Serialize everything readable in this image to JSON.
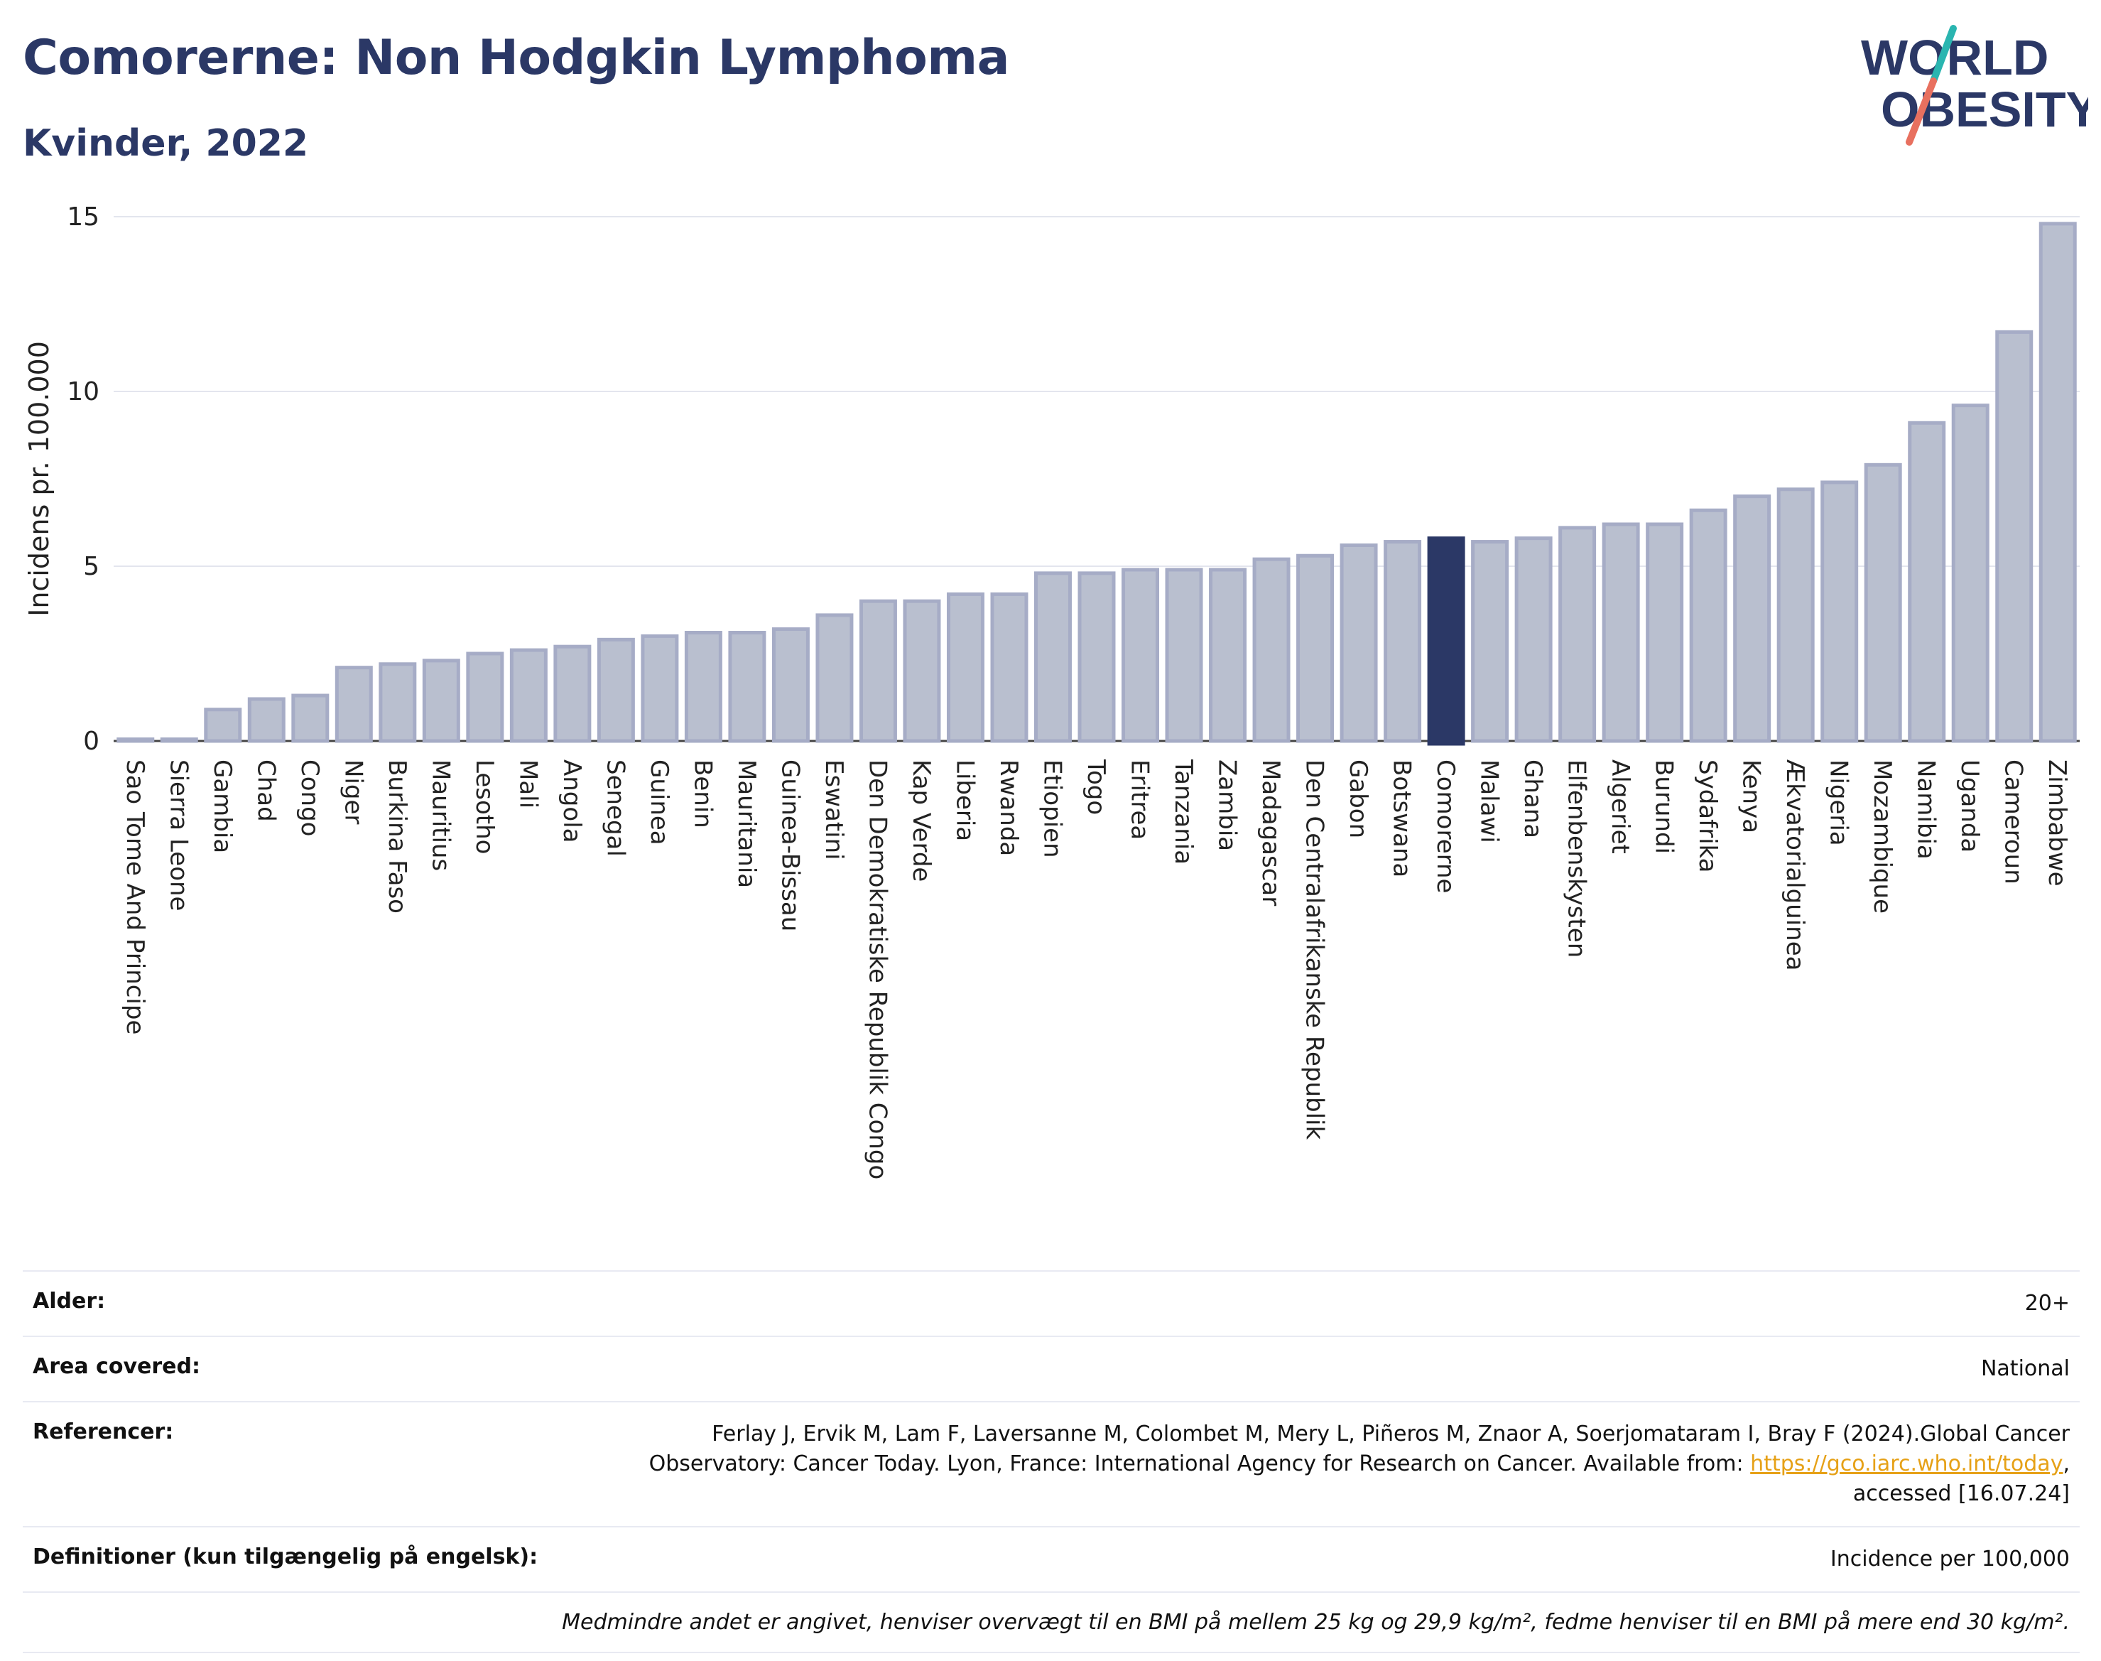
{
  "header": {
    "title": "Comorerne: Non Hodgkin Lymphoma",
    "subtitle": "Kvinder, 2022",
    "logo_line1": "WORLD",
    "logo_line2": "OBESITY"
  },
  "colors": {
    "title": "#2b3866",
    "bar": "#b9bfcf",
    "bar_outline": "#a6acc6",
    "highlight": "#2b3866",
    "logo_teal": "#2ab5b0",
    "logo_coral": "#e8705f",
    "link": "#e6a117"
  },
  "chart_data": {
    "type": "bar",
    "title": "Comorerne: Non Hodgkin Lymphoma",
    "subtitle": "Kvinder, 2022",
    "ylabel": "Incidens pr. 100.000",
    "xlabel": "",
    "ylim": [
      0,
      15
    ],
    "yticks": [
      0,
      5,
      10,
      15
    ],
    "grid": true,
    "highlight": "Comorerne",
    "categories": [
      "Sao Tome And Principe",
      "Sierra Leone",
      "Gambia",
      "Chad",
      "Congo",
      "Niger",
      "Burkina Faso",
      "Mauritius",
      "Lesotho",
      "Mali",
      "Angola",
      "Senegal",
      "Guinea",
      "Benin",
      "Mauritania",
      "Guinea-Bissau",
      "Eswatini",
      "Den Demokratiske Republik Congo",
      "Kap Verde",
      "Liberia",
      "Rwanda",
      "Etiopien",
      "Togo",
      "Eritrea",
      "Tanzania",
      "Zambia",
      "Madagascar",
      "Den Centralafrikanske Republik",
      "Gabon",
      "Botswana",
      "Comorerne",
      "Malawi",
      "Ghana",
      "Elfenbenskysten",
      "Algeriet",
      "Burundi",
      "Sydafrika",
      "Kenya",
      "Ækvatorialguinea",
      "Nigeria",
      "Mozambique",
      "Namibia",
      "Uganda",
      "Cameroun",
      "Zimbabwe"
    ],
    "values": [
      0.05,
      0.05,
      0.9,
      1.2,
      1.3,
      2.1,
      2.2,
      2.3,
      2.5,
      2.6,
      2.7,
      2.9,
      3.0,
      3.1,
      3.1,
      3.2,
      3.6,
      4.0,
      4.0,
      4.2,
      4.2,
      4.8,
      4.8,
      4.9,
      4.9,
      4.9,
      5.2,
      5.3,
      5.6,
      5.7,
      5.8,
      5.7,
      5.8,
      6.1,
      6.2,
      6.2,
      6.6,
      7.0,
      7.2,
      7.4,
      7.9,
      9.1,
      9.6,
      11.7,
      14.8
    ]
  },
  "info": {
    "age_label": "Alder:",
    "age_value": "20+",
    "area_label": "Area covered:",
    "area_value": "National",
    "ref_label": "Referencer:",
    "ref_text": "Ferlay J, Ervik M, Lam F, Laversanne M, Colombet M, Mery L, Piñeros M, Znaor A, Soerjomataram I, Bray F (2024).Global Cancer Observatory: Cancer Today. Lyon, France: International Agency for Research on Cancer. Available from: ",
    "ref_link": "https://gco.iarc.who.int/today",
    "ref_suffix": ", accessed [16.07.24]",
    "def_label": "Definitioner (kun tilgængelig på engelsk):",
    "def_value": "Incidence per 100,000",
    "note": "Medmindre andet er angivet, henviser overvægt til en BMI på mellem 25 kg og 29,9 kg/m², fedme henviser til en BMI på mere end 30 kg/m²."
  }
}
